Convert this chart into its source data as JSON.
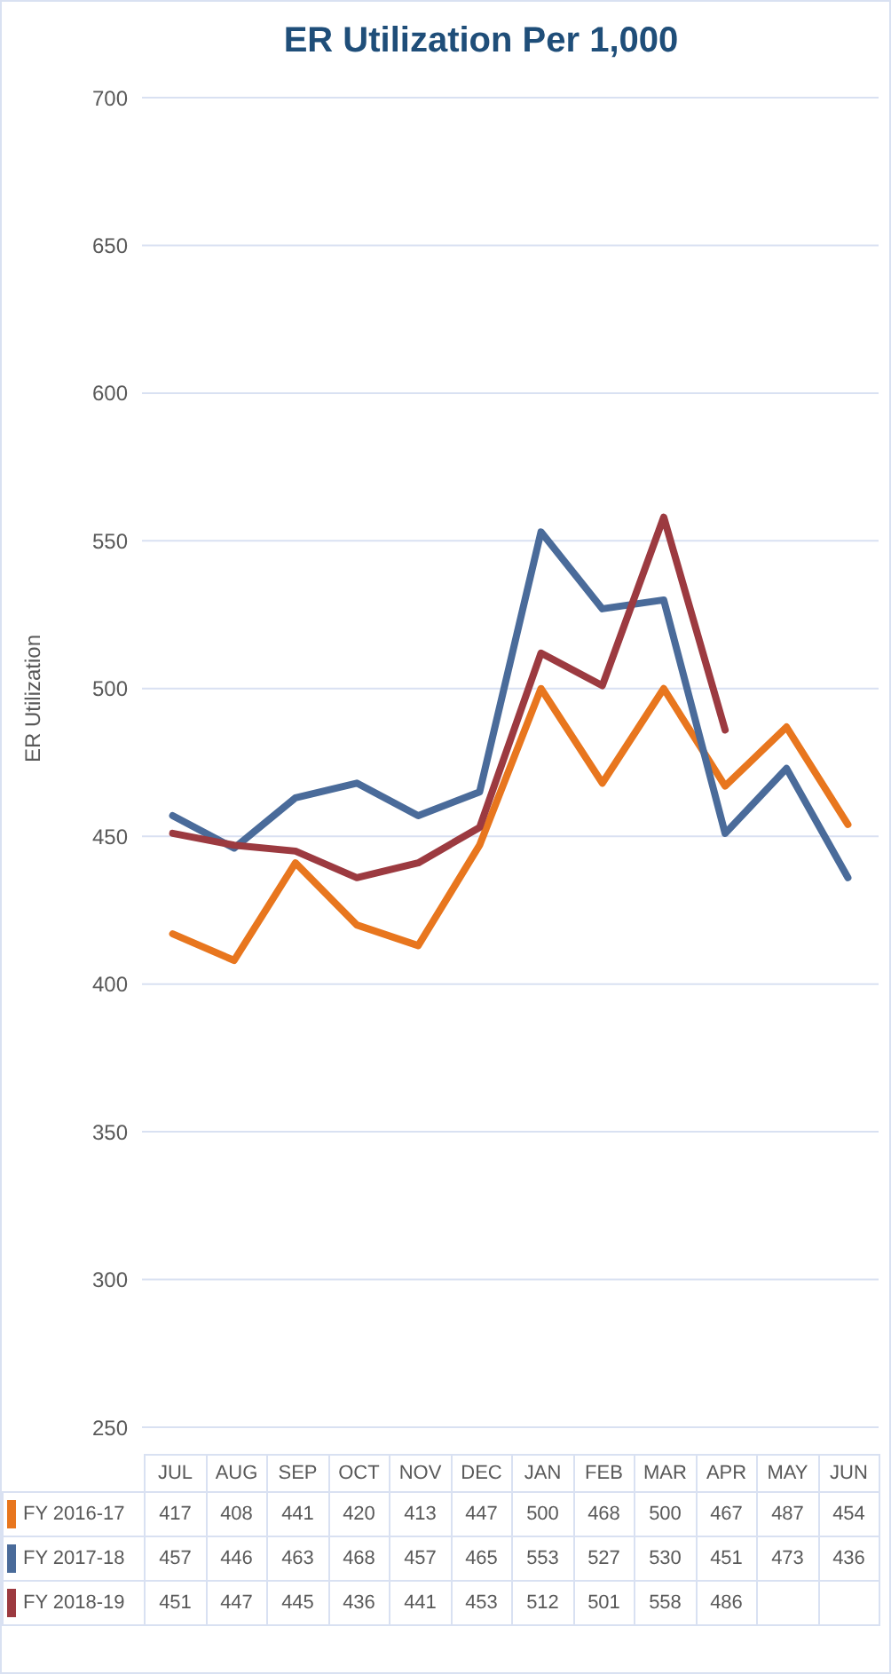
{
  "chart_data": {
    "type": "line",
    "title": "ER Utilization Per 1,000",
    "ylabel": "ER Utilization",
    "categories": [
      "JUL",
      "AUG",
      "SEP",
      "OCT",
      "NOV",
      "DEC",
      "JAN",
      "FEB",
      "MAR",
      "APR",
      "MAY",
      "JUN"
    ],
    "series": [
      {
        "name": "FY 2016-17",
        "color": "#e8761e",
        "values": [
          417,
          408,
          441,
          420,
          413,
          447,
          500,
          468,
          500,
          467,
          487,
          454
        ]
      },
      {
        "name": "FY 2017-18",
        "color": "#4a6b9a",
        "values": [
          457,
          446,
          463,
          468,
          457,
          465,
          553,
          527,
          530,
          451,
          473,
          436
        ]
      },
      {
        "name": "FY 2018-19",
        "color": "#9c3a40",
        "values": [
          451,
          447,
          445,
          436,
          441,
          453,
          512,
          501,
          558,
          486,
          null,
          null
        ]
      }
    ],
    "ylim": [
      250,
      700
    ],
    "yticks": [
      250,
      300,
      350,
      400,
      450,
      500,
      550,
      600,
      650,
      700
    ],
    "grid": "y",
    "legend": "bottom",
    "data_labels": true,
    "marker": "none",
    "line_style": "solid"
  }
}
